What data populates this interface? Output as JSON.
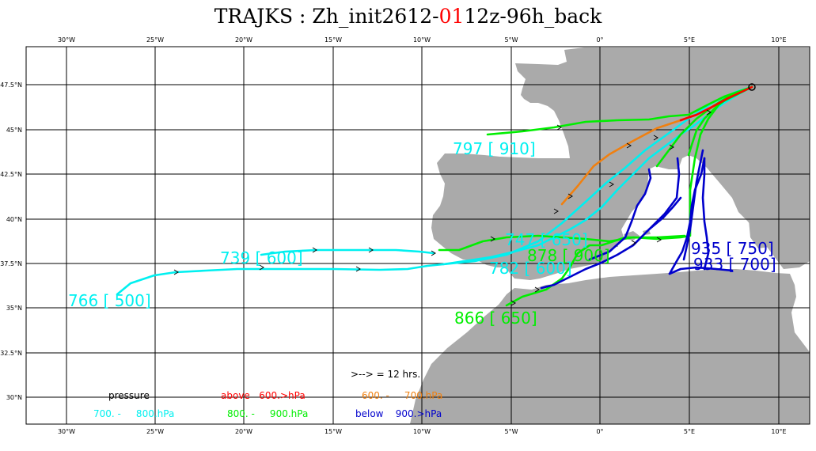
{
  "title": {
    "prefix": "TRAJKS : Zh_init2612-",
    "highlight": "01",
    "suffix": "12z-96h_back"
  },
  "axes": {
    "lon_labels": [
      "30°W",
      "25°W",
      "20°W",
      "15°W",
      "10°W",
      "5°W",
      "0°",
      "5°E",
      "10°E"
    ],
    "lat_labels": [
      "47.5°N",
      "45°N",
      "42.5°N",
      "40°N",
      "37.5°N",
      "35°N",
      "32.5°N",
      "30°N"
    ]
  },
  "colors": {
    "land": "#aaaaaa",
    "above_600": "#ff0000",
    "p600_700": "#f08010",
    "p700_800": "#00f0f0",
    "p800_900": "#00ee00",
    "below_900": "#0000cc"
  },
  "trajectory_labels": [
    {
      "text": "797 [ 910]",
      "color": "#00f0f0"
    },
    {
      "text": "739 [ 600]",
      "color": "#00f0f0"
    },
    {
      "text": "766 [ 500]",
      "color": "#00f0f0"
    },
    {
      "text": "747 [ 650]",
      "color": "#00f0f0"
    },
    {
      "text": "782 [ 600]",
      "color": "#00f0f0"
    },
    {
      "text": "878 [ 900]",
      "color": "#00ee00"
    },
    {
      "text": "866 [ 650]",
      "color": "#00ee00"
    },
    {
      "text": "935 [ 750]",
      "color": "#0000cc"
    },
    {
      "text": "933 [ 700]",
      "color": "#0000cc"
    }
  ],
  "legend": {
    "time_note": ">--> = 12 hrs.",
    "pressure": "pressure",
    "above": "above   600.>hPa",
    "range_600_700": "600. -     700.hPa",
    "range_700_800": "700. -     800.hPa",
    "range_800_900": "800. -     900.hPa",
    "below": "below    900.>hPa"
  }
}
